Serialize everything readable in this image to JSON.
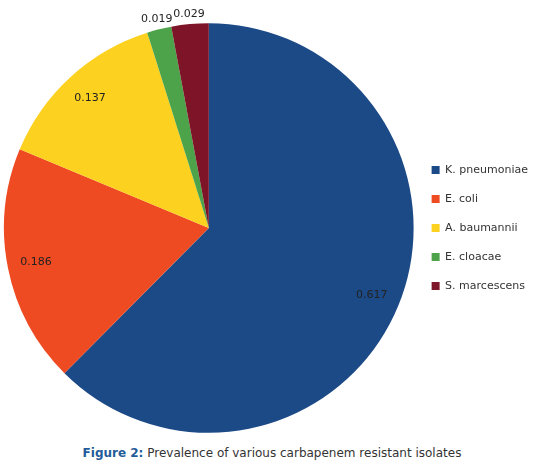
{
  "chart_data": {
    "type": "pie",
    "title": "Figure 2: Prevalence of various carbapenem resistant isolates",
    "categories": [
      "K. pneumoniae",
      "E. coli",
      "A. baumannii",
      "E. cloacae",
      "S. marcescens"
    ],
    "values": [
      0.617,
      0.186,
      0.137,
      0.019,
      0.029
    ],
    "colors": [
      "#1c4a87",
      "#ef4b23",
      "#fdd120",
      "#4ca34a",
      "#7d1427"
    ],
    "data_labels": true,
    "legend": "right"
  }
}
